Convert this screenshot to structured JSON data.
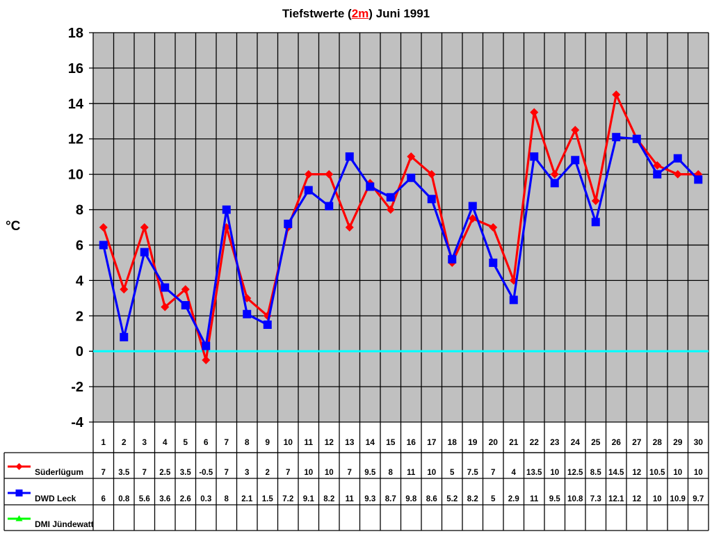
{
  "title": {
    "prefix": "Tiefstwerte (",
    "highlight": "2m",
    "suffix": ") Juni 1991"
  },
  "colors": {
    "plot_bg": "#c0c0c0",
    "grid": "#000000",
    "zero_line": "#00ffff",
    "suederluegum": "#ff0000",
    "dwd_leck": "#0000ff",
    "dmi_juendewatt": "#00ff00"
  },
  "chart_data": {
    "type": "line",
    "title": "Tiefstwerte (2m) Juni 1991",
    "xlabel": "",
    "ylabel": "°C",
    "ylim": [
      -4,
      18
    ],
    "yticks": [
      18,
      16,
      14,
      12,
      10,
      8,
      6,
      4,
      2,
      0,
      -2,
      -4
    ],
    "grid": true,
    "legend_position": "bottom-left data table",
    "categories": [
      "1",
      "2",
      "3",
      "4",
      "5",
      "6",
      "7",
      "8",
      "9",
      "10",
      "11",
      "12",
      "13",
      "14",
      "15",
      "16",
      "17",
      "18",
      "19",
      "20",
      "21",
      "22",
      "23",
      "24",
      "25",
      "26",
      "27",
      "28",
      "29",
      "30"
    ],
    "series": [
      {
        "name": "Süderlügum",
        "color": "#ff0000",
        "marker": "diamond",
        "values": [
          7,
          3.5,
          7,
          2.5,
          3.5,
          -0.5,
          7,
          3,
          2,
          7,
          10,
          10,
          7,
          9.5,
          8,
          11,
          10,
          5,
          7.5,
          7,
          4,
          13.5,
          10,
          12.5,
          8.5,
          14.5,
          12,
          10.5,
          10,
          10
        ]
      },
      {
        "name": "DWD Leck",
        "color": "#0000ff",
        "marker": "square",
        "values": [
          6,
          0.8,
          5.6,
          3.6,
          2.6,
          0.3,
          8,
          2.1,
          1.5,
          7.2,
          9.1,
          8.2,
          11,
          9.3,
          8.7,
          9.8,
          8.6,
          5.2,
          8.2,
          5,
          2.9,
          11,
          9.5,
          10.8,
          7.3,
          12.1,
          12,
          10,
          10.9,
          9.7
        ]
      },
      {
        "name": "DMI Jündewatt",
        "color": "#00ff00",
        "marker": "triangle",
        "values": []
      }
    ],
    "annotations": [
      "zero reference line (cyan) at 0 °C"
    ]
  }
}
